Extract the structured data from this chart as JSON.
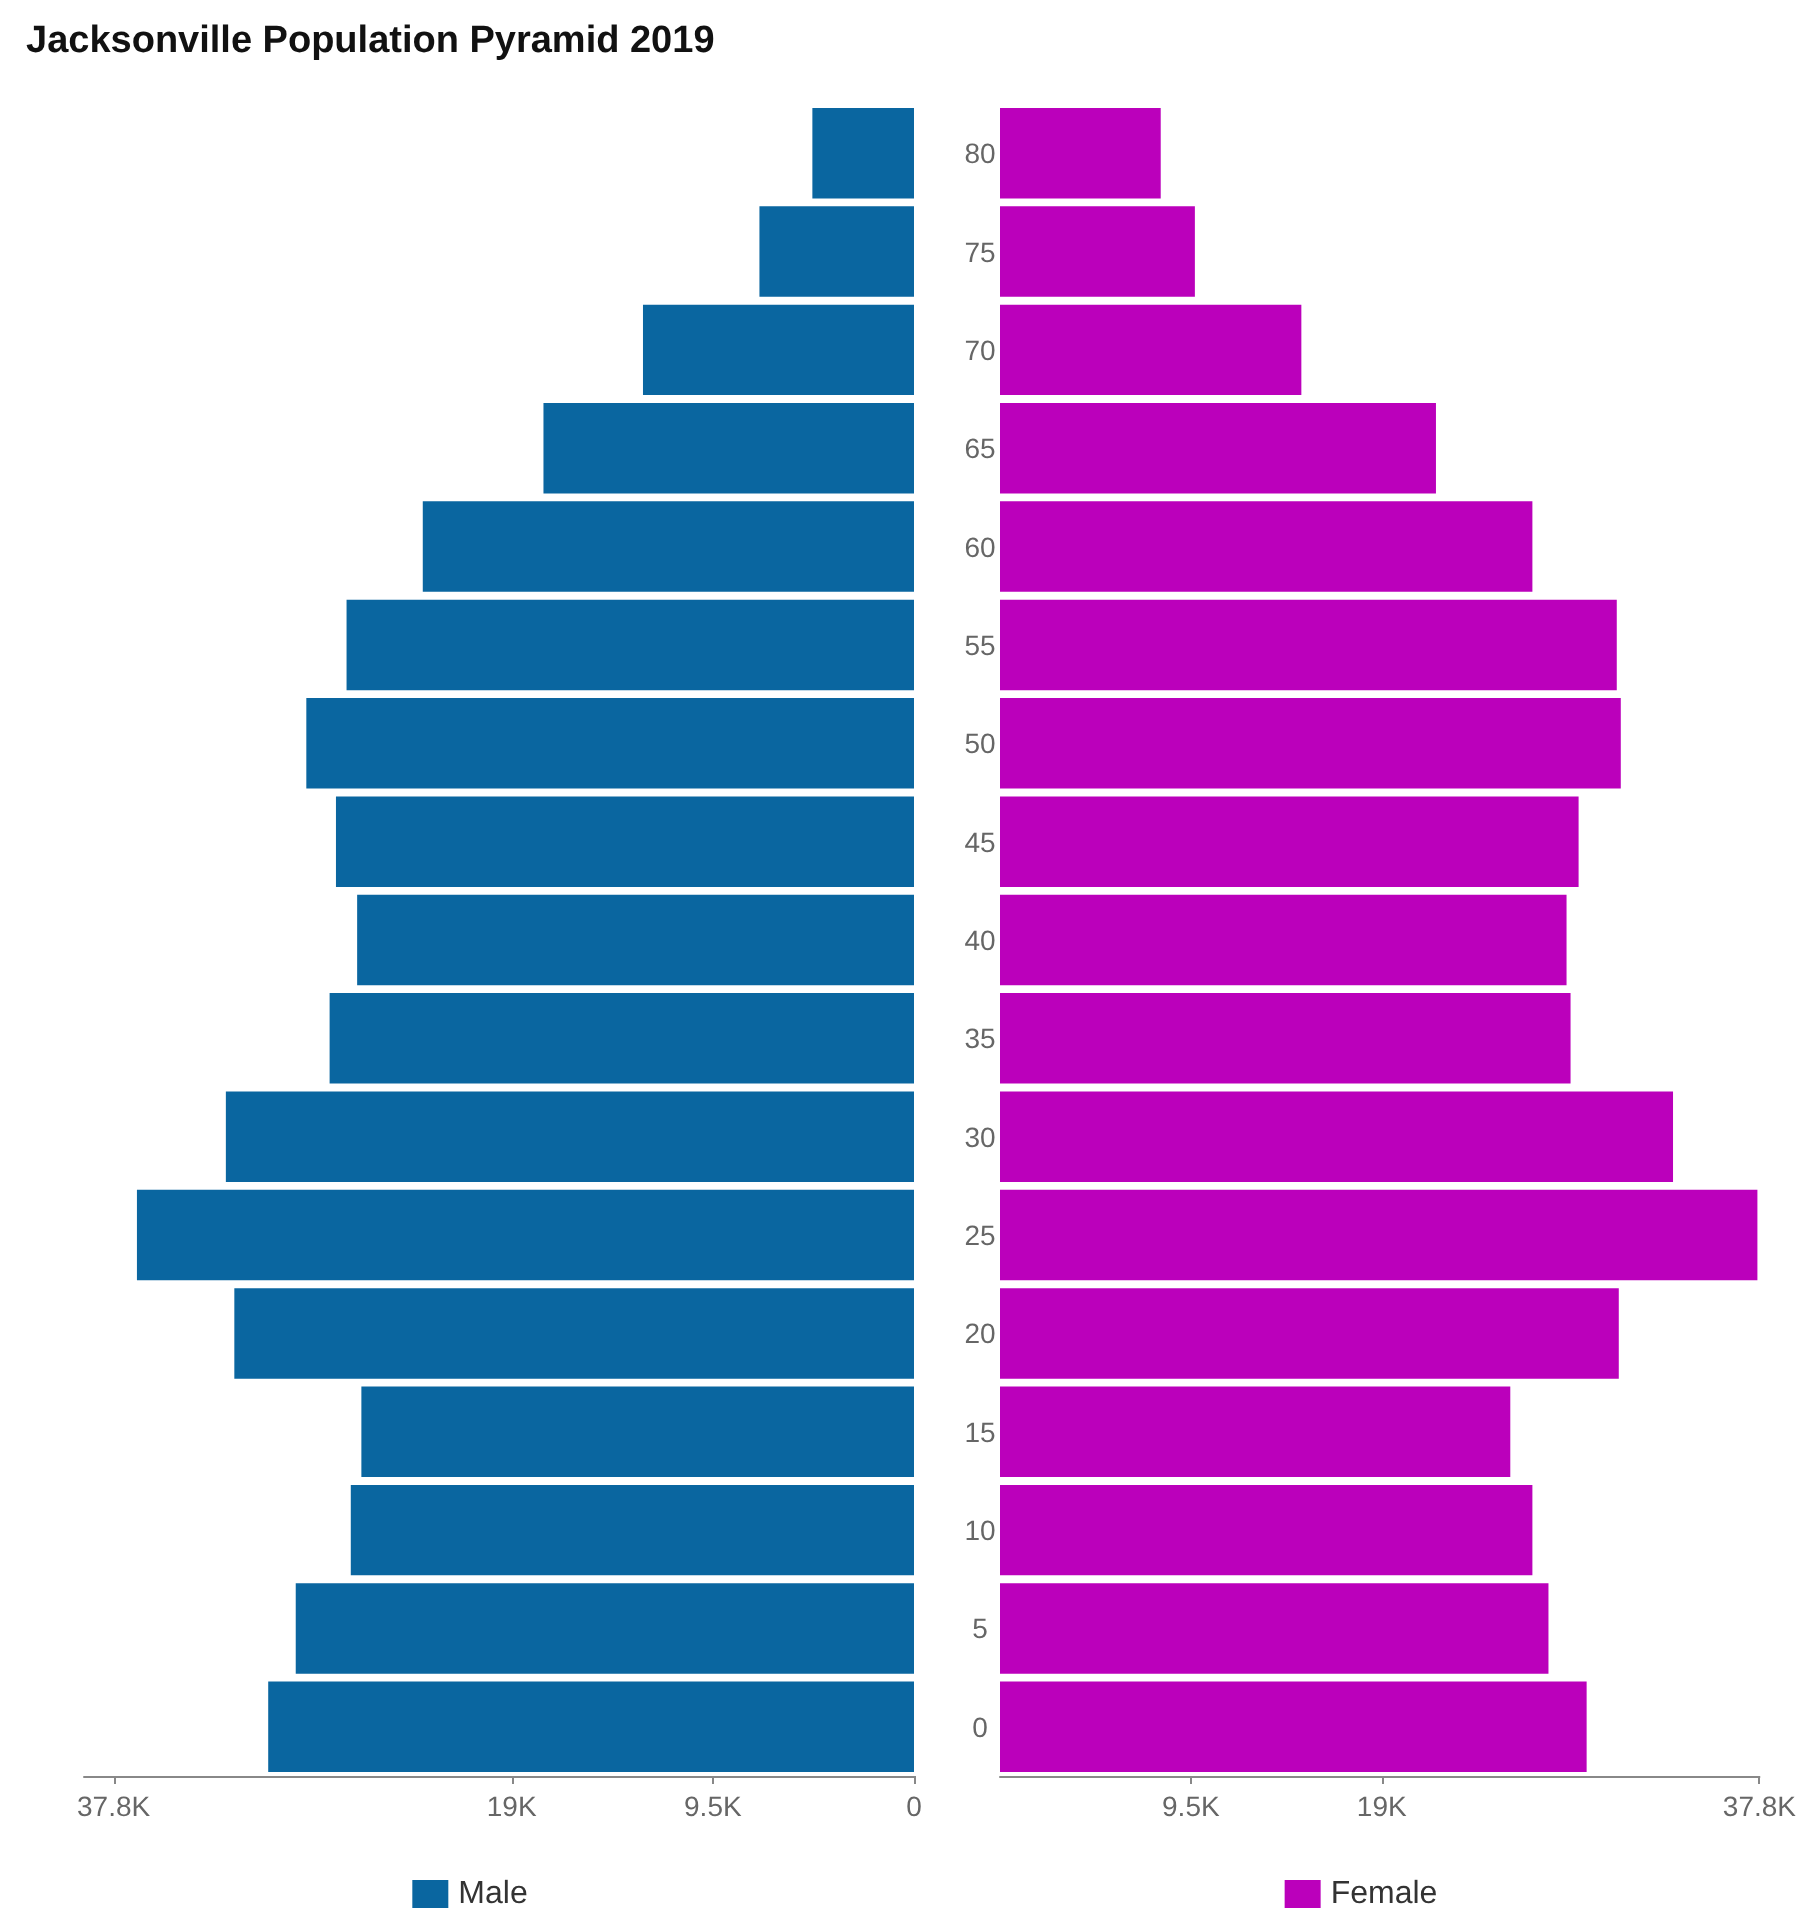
{
  "chart_data": [
    {
      "type": "bar",
      "orientation": "horizontal",
      "title": "Jacksonville Population Pyramid 2019",
      "categories": [
        "80",
        "75",
        "70",
        "65",
        "60",
        "55",
        "50",
        "45",
        "40",
        "35",
        "30",
        "25",
        "20",
        "15",
        "10",
        "5",
        "0"
      ],
      "series": [
        {
          "name": "Male",
          "color": "#0a66a0",
          "values": [
            4.8,
            7.3,
            12.8,
            17.5,
            23.2,
            26.8,
            28.7,
            27.3,
            26.3,
            27.6,
            32.5,
            36.7,
            32.1,
            26.1,
            26.6,
            29.2,
            30.5
          ]
        }
      ],
      "xlim": [
        39.2,
        0
      ],
      "xticks": [
        {
          "value": 37.8,
          "label": "37.8K"
        },
        {
          "value": 19,
          "label": "19K"
        },
        {
          "value": 9.5,
          "label": "9.5K"
        },
        0
      ],
      "tick_labels": "x",
      "grid": false,
      "legend": "bottom"
    },
    {
      "type": "bar",
      "orientation": "horizontal",
      "categories": [
        "80",
        "75",
        "70",
        "65",
        "60",
        "55",
        "50",
        "45",
        "40",
        "35",
        "30",
        "25",
        "20",
        "15",
        "10",
        "5",
        "0"
      ],
      "series": [
        {
          "name": "Female",
          "color": "#bb00bb",
          "values": [
            8.0,
            9.7,
            15.0,
            21.7,
            26.5,
            30.7,
            30.9,
            28.8,
            28.2,
            28.4,
            33.5,
            37.7,
            30.8,
            25.4,
            26.5,
            27.3,
            29.2
          ]
        }
      ],
      "xlim": [
        0,
        37.8
      ],
      "xticks": [
        {
          "value": 9.5,
          "label": "9.5K"
        },
        {
          "value": 19,
          "label": "19K"
        },
        {
          "value": 37.8,
          "label": "37.8K"
        }
      ],
      "grid": false,
      "legend": "bottom"
    }
  ]
}
